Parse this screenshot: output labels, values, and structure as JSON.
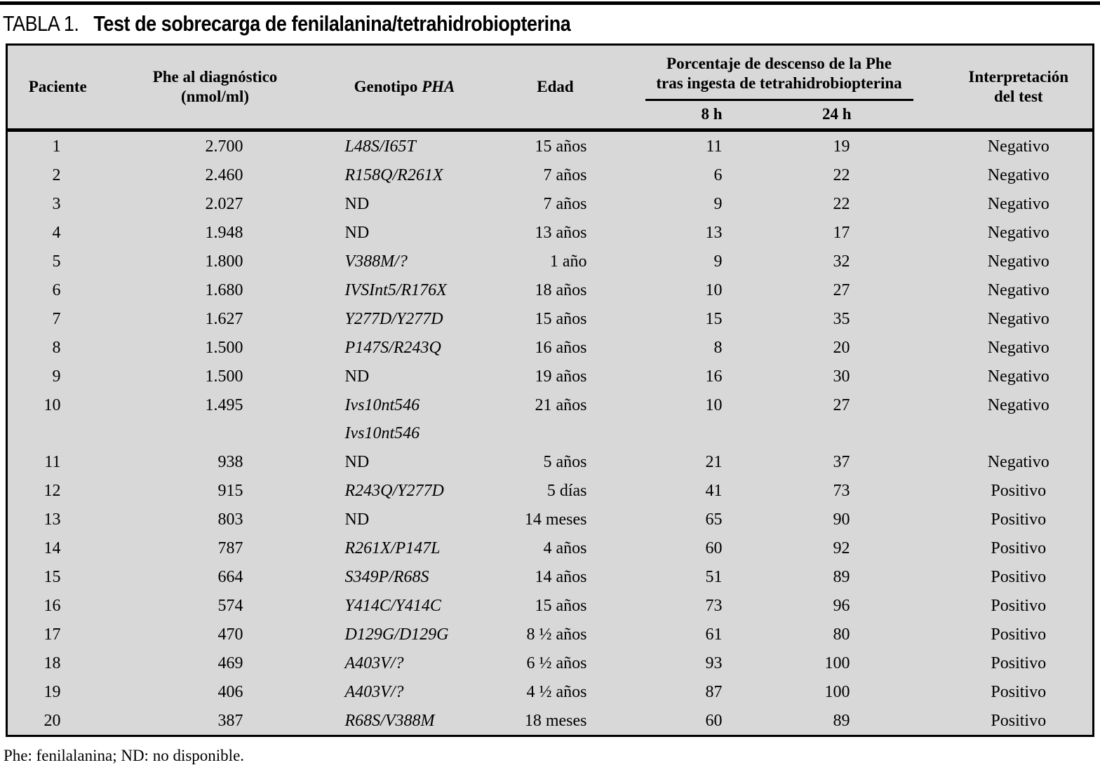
{
  "page": {
    "title_label": "TABLA 1.",
    "title_text": "Test de sobrecarga de fenilalanina/tetrahidrobiopterina",
    "footnote": "Phe: fenilalanina; ND: no disponible.",
    "colors": {
      "table_background": "#d8d8d8",
      "rule": "#000000",
      "text": "#000000"
    }
  },
  "table": {
    "headers": {
      "paciente": "Paciente",
      "phe_line1": "Phe al diagnóstico",
      "phe_line2": "(nmol/ml)",
      "genotipo_prefix": "Genotipo",
      "genotipo_gene": "PHA",
      "edad": "Edad",
      "group_line1": "Porcentaje de descenso de la Phe",
      "group_line2": "tras ingesta de tetrahidrobiopterina",
      "h8": "8 h",
      "h24": "24 h",
      "interpretacion_line1": "Interpretación",
      "interpretacion_line2": "del test"
    },
    "rows": [
      {
        "paciente": "1",
        "phe": "2.700",
        "genotipo": [
          "L48S/I65T"
        ],
        "genotipo_italic": true,
        "edad": "15 años",
        "h8": "11",
        "h24": "19",
        "interpretacion": "Negativo"
      },
      {
        "paciente": "2",
        "phe": "2.460",
        "genotipo": [
          "R158Q/R261X"
        ],
        "genotipo_italic": true,
        "edad": "7 años",
        "h8": "6",
        "h24": "22",
        "interpretacion": "Negativo"
      },
      {
        "paciente": "3",
        "phe": "2.027",
        "genotipo": [
          "ND"
        ],
        "genotipo_italic": false,
        "edad": "7 años",
        "h8": "9",
        "h24": "22",
        "interpretacion": "Negativo"
      },
      {
        "paciente": "4",
        "phe": "1.948",
        "genotipo": [
          "ND"
        ],
        "genotipo_italic": false,
        "edad": "13 años",
        "h8": "13",
        "h24": "17",
        "interpretacion": "Negativo"
      },
      {
        "paciente": "5",
        "phe": "1.800",
        "genotipo": [
          "V388M/?"
        ],
        "genotipo_italic": true,
        "edad": "1 año",
        "h8": "9",
        "h24": "32",
        "interpretacion": "Negativo"
      },
      {
        "paciente": "6",
        "phe": "1.680",
        "genotipo": [
          "IVSInt5/R176X"
        ],
        "genotipo_italic": true,
        "edad": "18 años",
        "h8": "10",
        "h24": "27",
        "interpretacion": "Negativo"
      },
      {
        "paciente": "7",
        "phe": "1.627",
        "genotipo": [
          "Y277D/Y277D"
        ],
        "genotipo_italic": true,
        "edad": "15 años",
        "h8": "15",
        "h24": "35",
        "interpretacion": "Negativo"
      },
      {
        "paciente": "8",
        "phe": "1.500",
        "genotipo": [
          "P147S/R243Q"
        ],
        "genotipo_italic": true,
        "edad": "16 años",
        "h8": "8",
        "h24": "20",
        "interpretacion": "Negativo"
      },
      {
        "paciente": "9",
        "phe": "1.500",
        "genotipo": [
          "ND"
        ],
        "genotipo_italic": false,
        "edad": "19 años",
        "h8": "16",
        "h24": "30",
        "interpretacion": "Negativo"
      },
      {
        "paciente": "10",
        "phe": "1.495",
        "genotipo": [
          "Ivs10nt546",
          "Ivs10nt546"
        ],
        "genotipo_italic": true,
        "edad": "21 años",
        "h8": "10",
        "h24": "27",
        "interpretacion": "Negativo"
      },
      {
        "paciente": "11",
        "phe": "938",
        "genotipo": [
          "ND"
        ],
        "genotipo_italic": false,
        "edad": "5 años",
        "h8": "21",
        "h24": "37",
        "interpretacion": "Negativo"
      },
      {
        "paciente": "12",
        "phe": "915",
        "genotipo": [
          "R243Q/Y277D"
        ],
        "genotipo_italic": true,
        "edad": "5 días",
        "h8": "41",
        "h24": "73",
        "interpretacion": "Positivo"
      },
      {
        "paciente": "13",
        "phe": "803",
        "genotipo": [
          "ND"
        ],
        "genotipo_italic": false,
        "edad": "14 meses",
        "h8": "65",
        "h24": "90",
        "interpretacion": "Positivo"
      },
      {
        "paciente": "14",
        "phe": "787",
        "genotipo": [
          "R261X/P147L"
        ],
        "genotipo_italic": true,
        "edad": "4 años",
        "h8": "60",
        "h24": "92",
        "interpretacion": "Positivo"
      },
      {
        "paciente": "15",
        "phe": "664",
        "genotipo": [
          "S349P/R68S"
        ],
        "genotipo_italic": true,
        "edad": "14 años",
        "h8": "51",
        "h24": "89",
        "interpretacion": "Positivo"
      },
      {
        "paciente": "16",
        "phe": "574",
        "genotipo": [
          "Y414C/Y414C"
        ],
        "genotipo_italic": true,
        "edad": "15 años",
        "h8": "73",
        "h24": "96",
        "interpretacion": "Positivo"
      },
      {
        "paciente": "17",
        "phe": "470",
        "genotipo": [
          "D129G/D129G"
        ],
        "genotipo_italic": true,
        "edad": "8 ½ años",
        "h8": "61",
        "h24": "80",
        "interpretacion": "Positivo"
      },
      {
        "paciente": "18",
        "phe": "469",
        "genotipo": [
          "A403V/?"
        ],
        "genotipo_italic": true,
        "edad": "6 ½ años",
        "h8": "93",
        "h24": "100",
        "interpretacion": "Positivo"
      },
      {
        "paciente": "19",
        "phe": "406",
        "genotipo": [
          "A403V/?"
        ],
        "genotipo_italic": true,
        "edad": "4 ½ años",
        "h8": "87",
        "h24": "100",
        "interpretacion": "Positivo"
      },
      {
        "paciente": "20",
        "phe": "387",
        "genotipo": [
          "R68S/V388M"
        ],
        "genotipo_italic": true,
        "edad": "18 meses",
        "h8": "60",
        "h24": "89",
        "interpretacion": "Positivo"
      }
    ]
  }
}
